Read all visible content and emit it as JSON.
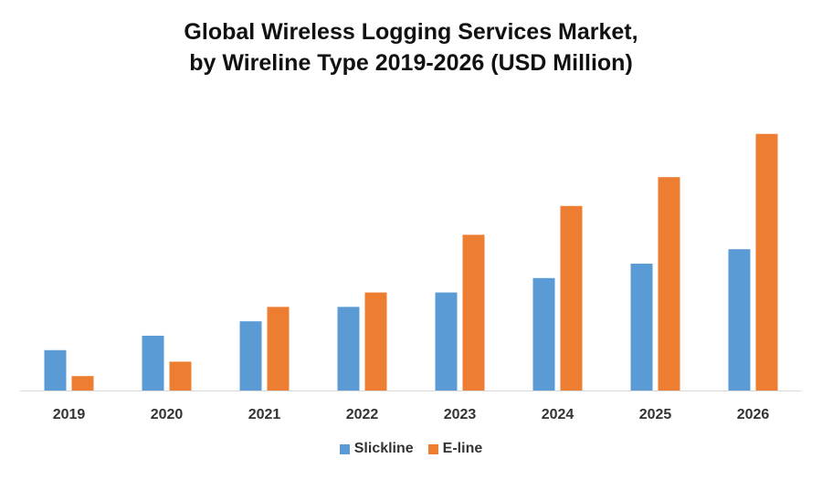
{
  "chart_data": {
    "type": "bar",
    "title_line1": "Global Wireless Logging Services Market,",
    "title_line2": "by Wireline Type 2019-2026 (USD Million)",
    "xlabel": "",
    "ylabel": "",
    "categories": [
      "2019",
      "2020",
      "2021",
      "2022",
      "2023",
      "2024",
      "2025",
      "2026"
    ],
    "series": [
      {
        "name": "Slickline",
        "color": "#5B9BD5",
        "values": [
          14,
          19,
          24,
          29,
          34,
          39,
          44,
          49
        ]
      },
      {
        "name": "E-line",
        "color": "#ED7D31",
        "values": [
          5,
          10,
          29,
          34,
          54,
          64,
          74,
          89
        ]
      }
    ],
    "ylim": [
      0,
      100
    ],
    "grid": false,
    "legend_position": "bottom"
  }
}
